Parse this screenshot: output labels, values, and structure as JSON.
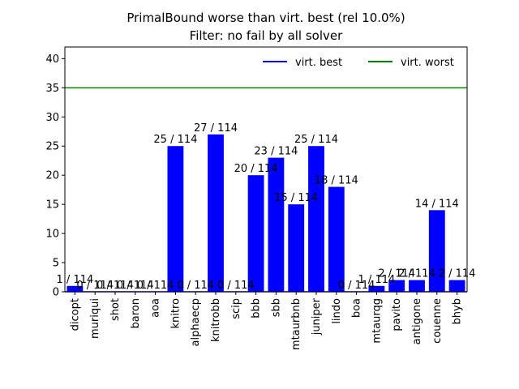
{
  "chart_data": {
    "type": "bar",
    "title_line1": "PrimalBound worse than virt. best (rel 10.0%)",
    "title_line2": "Filter: no fail by all solver",
    "xlabel": "",
    "ylabel": "",
    "ylim": [
      0,
      42
    ],
    "yticks": [
      0,
      5,
      10,
      15,
      20,
      25,
      30,
      35,
      40
    ],
    "grid": false,
    "total": 114,
    "categories": [
      "dicopt",
      "muriqui",
      "shot",
      "baron",
      "aoa",
      "knitro",
      "alphaecp",
      "knitrobb",
      "scip",
      "bbb",
      "sbb",
      "mtaurbnb",
      "juniper",
      "lindo",
      "boa",
      "mtaurqg",
      "pavito",
      "antigone",
      "couenne",
      "bhyb"
    ],
    "values": [
      1,
      0,
      0,
      0,
      0,
      25,
      0,
      27,
      0,
      20,
      23,
      15,
      25,
      18,
      0,
      1,
      2,
      2,
      14,
      2
    ],
    "labels": [
      "1 / 114",
      "0 / 114",
      "0 / 114",
      "0 / 114",
      "0 / 114",
      "25 / 114",
      "0 / 114",
      "27 / 114",
      "0 / 114",
      "20 / 114",
      "23 / 114",
      "15 / 114",
      "25 / 114",
      "18 / 114",
      "0 / 114",
      "1 / 114",
      "2 / 114",
      "2 / 114",
      "14 / 114",
      "2 / 114"
    ],
    "bar_color": "#0000ff",
    "series": [
      {
        "name": "virt. best",
        "value": 0,
        "color": "#0000ff"
      },
      {
        "name": "virt. worst",
        "value": 35,
        "color": "#008000"
      }
    ],
    "legend_placement": "top-right"
  }
}
